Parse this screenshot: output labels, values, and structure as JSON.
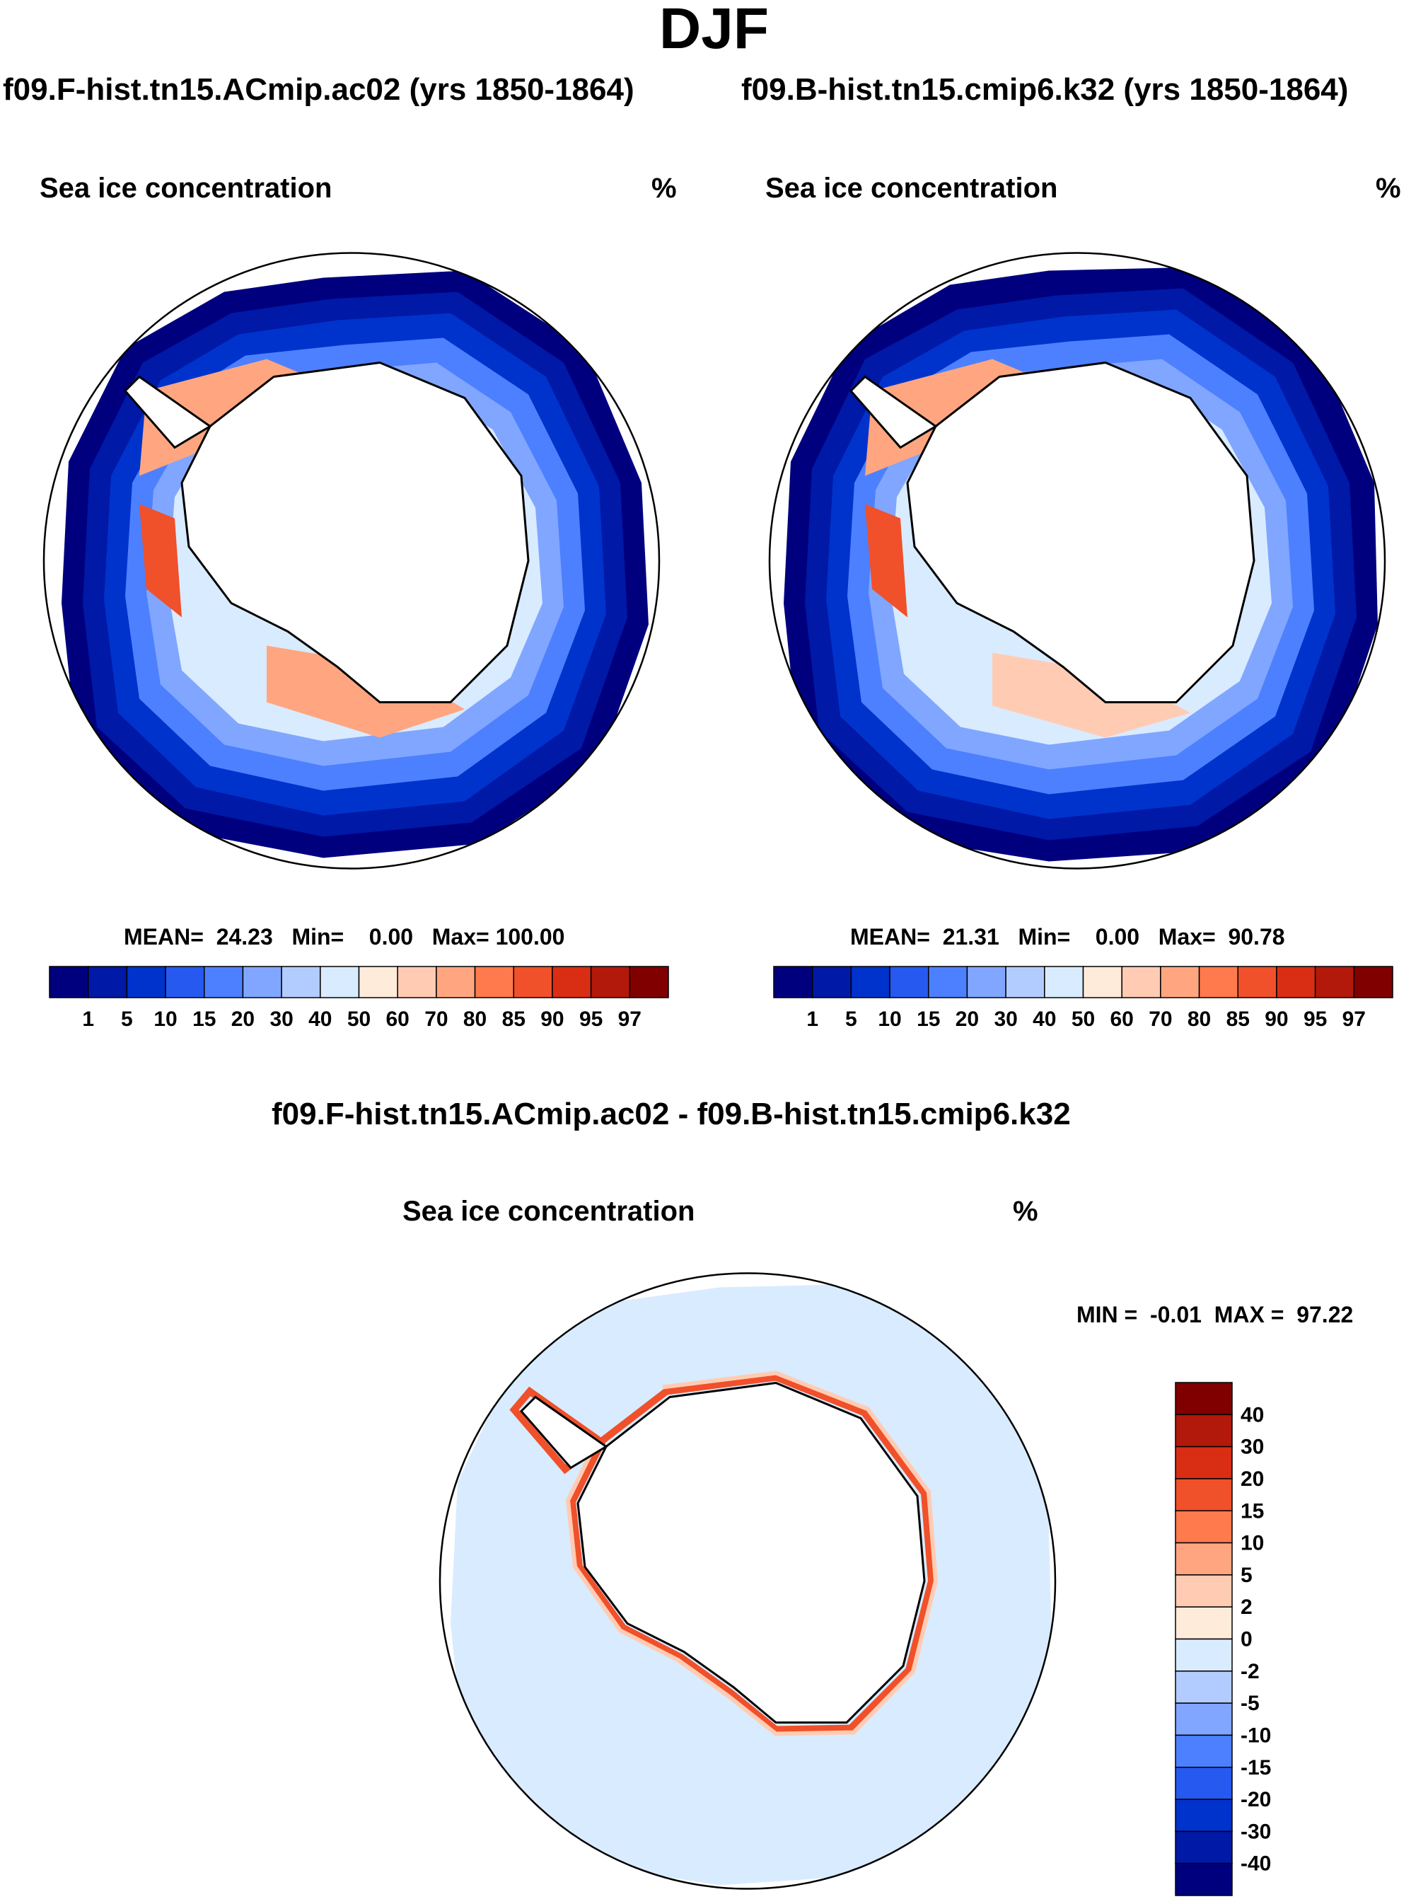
{
  "page_title": "DJF",
  "panels": {
    "left": {
      "case_title": "f09.F-hist.tn15.ACmip.ac02 (yrs 1850-1864)",
      "variable": "Sea ice concentration",
      "units": "%",
      "stats": "MEAN=  24.23   Min=    0.00   Max= 100.00"
    },
    "right": {
      "case_title": "f09.B-hist.tn15.cmip6.k32 (yrs 1850-1864)",
      "variable": "Sea ice concentration",
      "units": "%",
      "stats": "MEAN=  21.31   Min=    0.00   Max=  90.78"
    },
    "diff": {
      "title": "f09.F-hist.tn15.ACmip.ac02 - f09.B-hist.tn15.cmip6.k32",
      "variable": "Sea ice concentration",
      "units": "%",
      "minmax": "MIN =  -0.01  MAX =  97.22"
    }
  },
  "colorbar_abs": {
    "labels": [
      "1",
      "5",
      "10",
      "15",
      "20",
      "30",
      "40",
      "50",
      "60",
      "70",
      "80",
      "85",
      "90",
      "95",
      "97"
    ],
    "colors": [
      "#00007f",
      "#0019a6",
      "#0033cc",
      "#2659f0",
      "#4d80ff",
      "#80a6ff",
      "#b3ccff",
      "#d9ebff",
      "#ffebd9",
      "#ffccb3",
      "#ffa680",
      "#ff7a4d",
      "#f0502a",
      "#d92e14",
      "#b3190a",
      "#800000"
    ]
  },
  "colorbar_diff": {
    "labels": [
      "40",
      "30",
      "20",
      "15",
      "10",
      "5",
      "2",
      "0",
      "-2",
      "-5",
      "-10",
      "-15",
      "-20",
      "-30",
      "-40"
    ],
    "colors": [
      "#800000",
      "#b3190a",
      "#d92e14",
      "#f0502a",
      "#ff7a4d",
      "#ffa680",
      "#ffccb3",
      "#ffebd9",
      "#d9ebff",
      "#b3ccff",
      "#80a6ff",
      "#4d80ff",
      "#2659f0",
      "#0033cc",
      "#0019a6",
      "#00007f"
    ]
  }
}
